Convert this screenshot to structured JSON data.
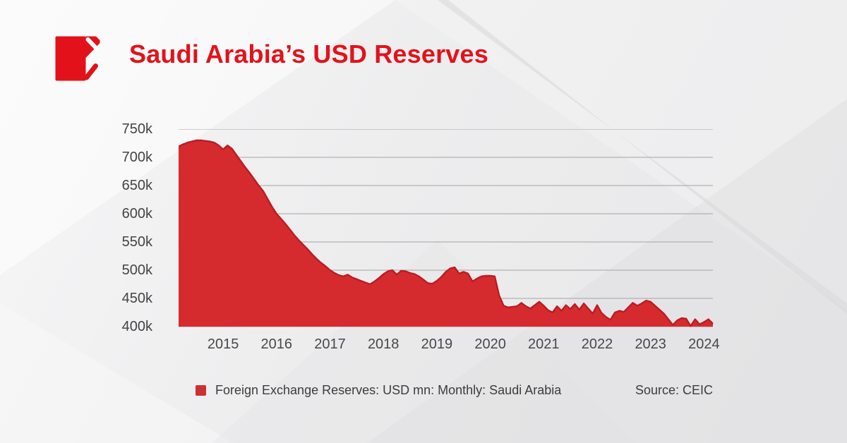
{
  "header": {
    "title": "Saudi Arabia’s USD Reserves"
  },
  "legend": {
    "series_label": "Foreign Exchange Reserves: USD mn: Monthly: Saudi Arabia",
    "source_label": "Source: CEIC"
  },
  "colors": {
    "title_red": "#e3121a",
    "logo_red": "#e3121a",
    "area_fill": "#d62b2e",
    "area_stroke": "#ba1d23",
    "legend_swatch": "#cd3232",
    "grid_gray": "#a3a3a5",
    "axis_text": "#48484b",
    "background": "#ededee"
  },
  "chart_data": {
    "type": "area",
    "title": "Saudi Arabia’s USD Reserves",
    "xlabel": "",
    "ylabel": "",
    "grid": "horizontal",
    "legend_position": "bottom",
    "x_start": "2014-03",
    "x_frequency": "monthly",
    "x_tick_labels": [
      "2015",
      "2016",
      "2017",
      "2018",
      "2019",
      "2020",
      "2021",
      "2022",
      "2023",
      "2024"
    ],
    "y_tick_labels": [
      "750k",
      "700k",
      "650k",
      "600k",
      "550k",
      "500k",
      "450k",
      "400k"
    ],
    "ylim_usd_mn": [
      400000,
      750000
    ],
    "values_unit": "thousand USD mn (k)",
    "series": [
      {
        "name": "Foreign Exchange Reserves: USD mn: Monthly: Saudi Arabia",
        "values": [
          719,
          723,
          726,
          728,
          730,
          730,
          729,
          728,
          726,
          721,
          714,
          721,
          715,
          704,
          693,
          682,
          672,
          661,
          650,
          640,
          626,
          612,
          600,
          591,
          582,
          572,
          562,
          553,
          545,
          537,
          528,
          520,
          513,
          507,
          500,
          495,
          491,
          489,
          492,
          487,
          484,
          481,
          478,
          475,
          480,
          486,
          493,
          498,
          500,
          492,
          499,
          498,
          495,
          493,
          489,
          483,
          477,
          476,
          481,
          488,
          497,
          503,
          505,
          494,
          497,
          494,
          480,
          485,
          489,
          490,
          490,
          489,
          455,
          437,
          434,
          435,
          436,
          442,
          436,
          432,
          438,
          444,
          437,
          429,
          425,
          436,
          428,
          438,
          431,
          440,
          430,
          441,
          432,
          423,
          438,
          424,
          417,
          412,
          425,
          428,
          426,
          434,
          442,
          437,
          441,
          446,
          444,
          437,
          430,
          423,
          413,
          403,
          411,
          415,
          414,
          401,
          413,
          404,
          408,
          413,
          405
        ]
      }
    ],
    "source": "Source: CEIC"
  }
}
